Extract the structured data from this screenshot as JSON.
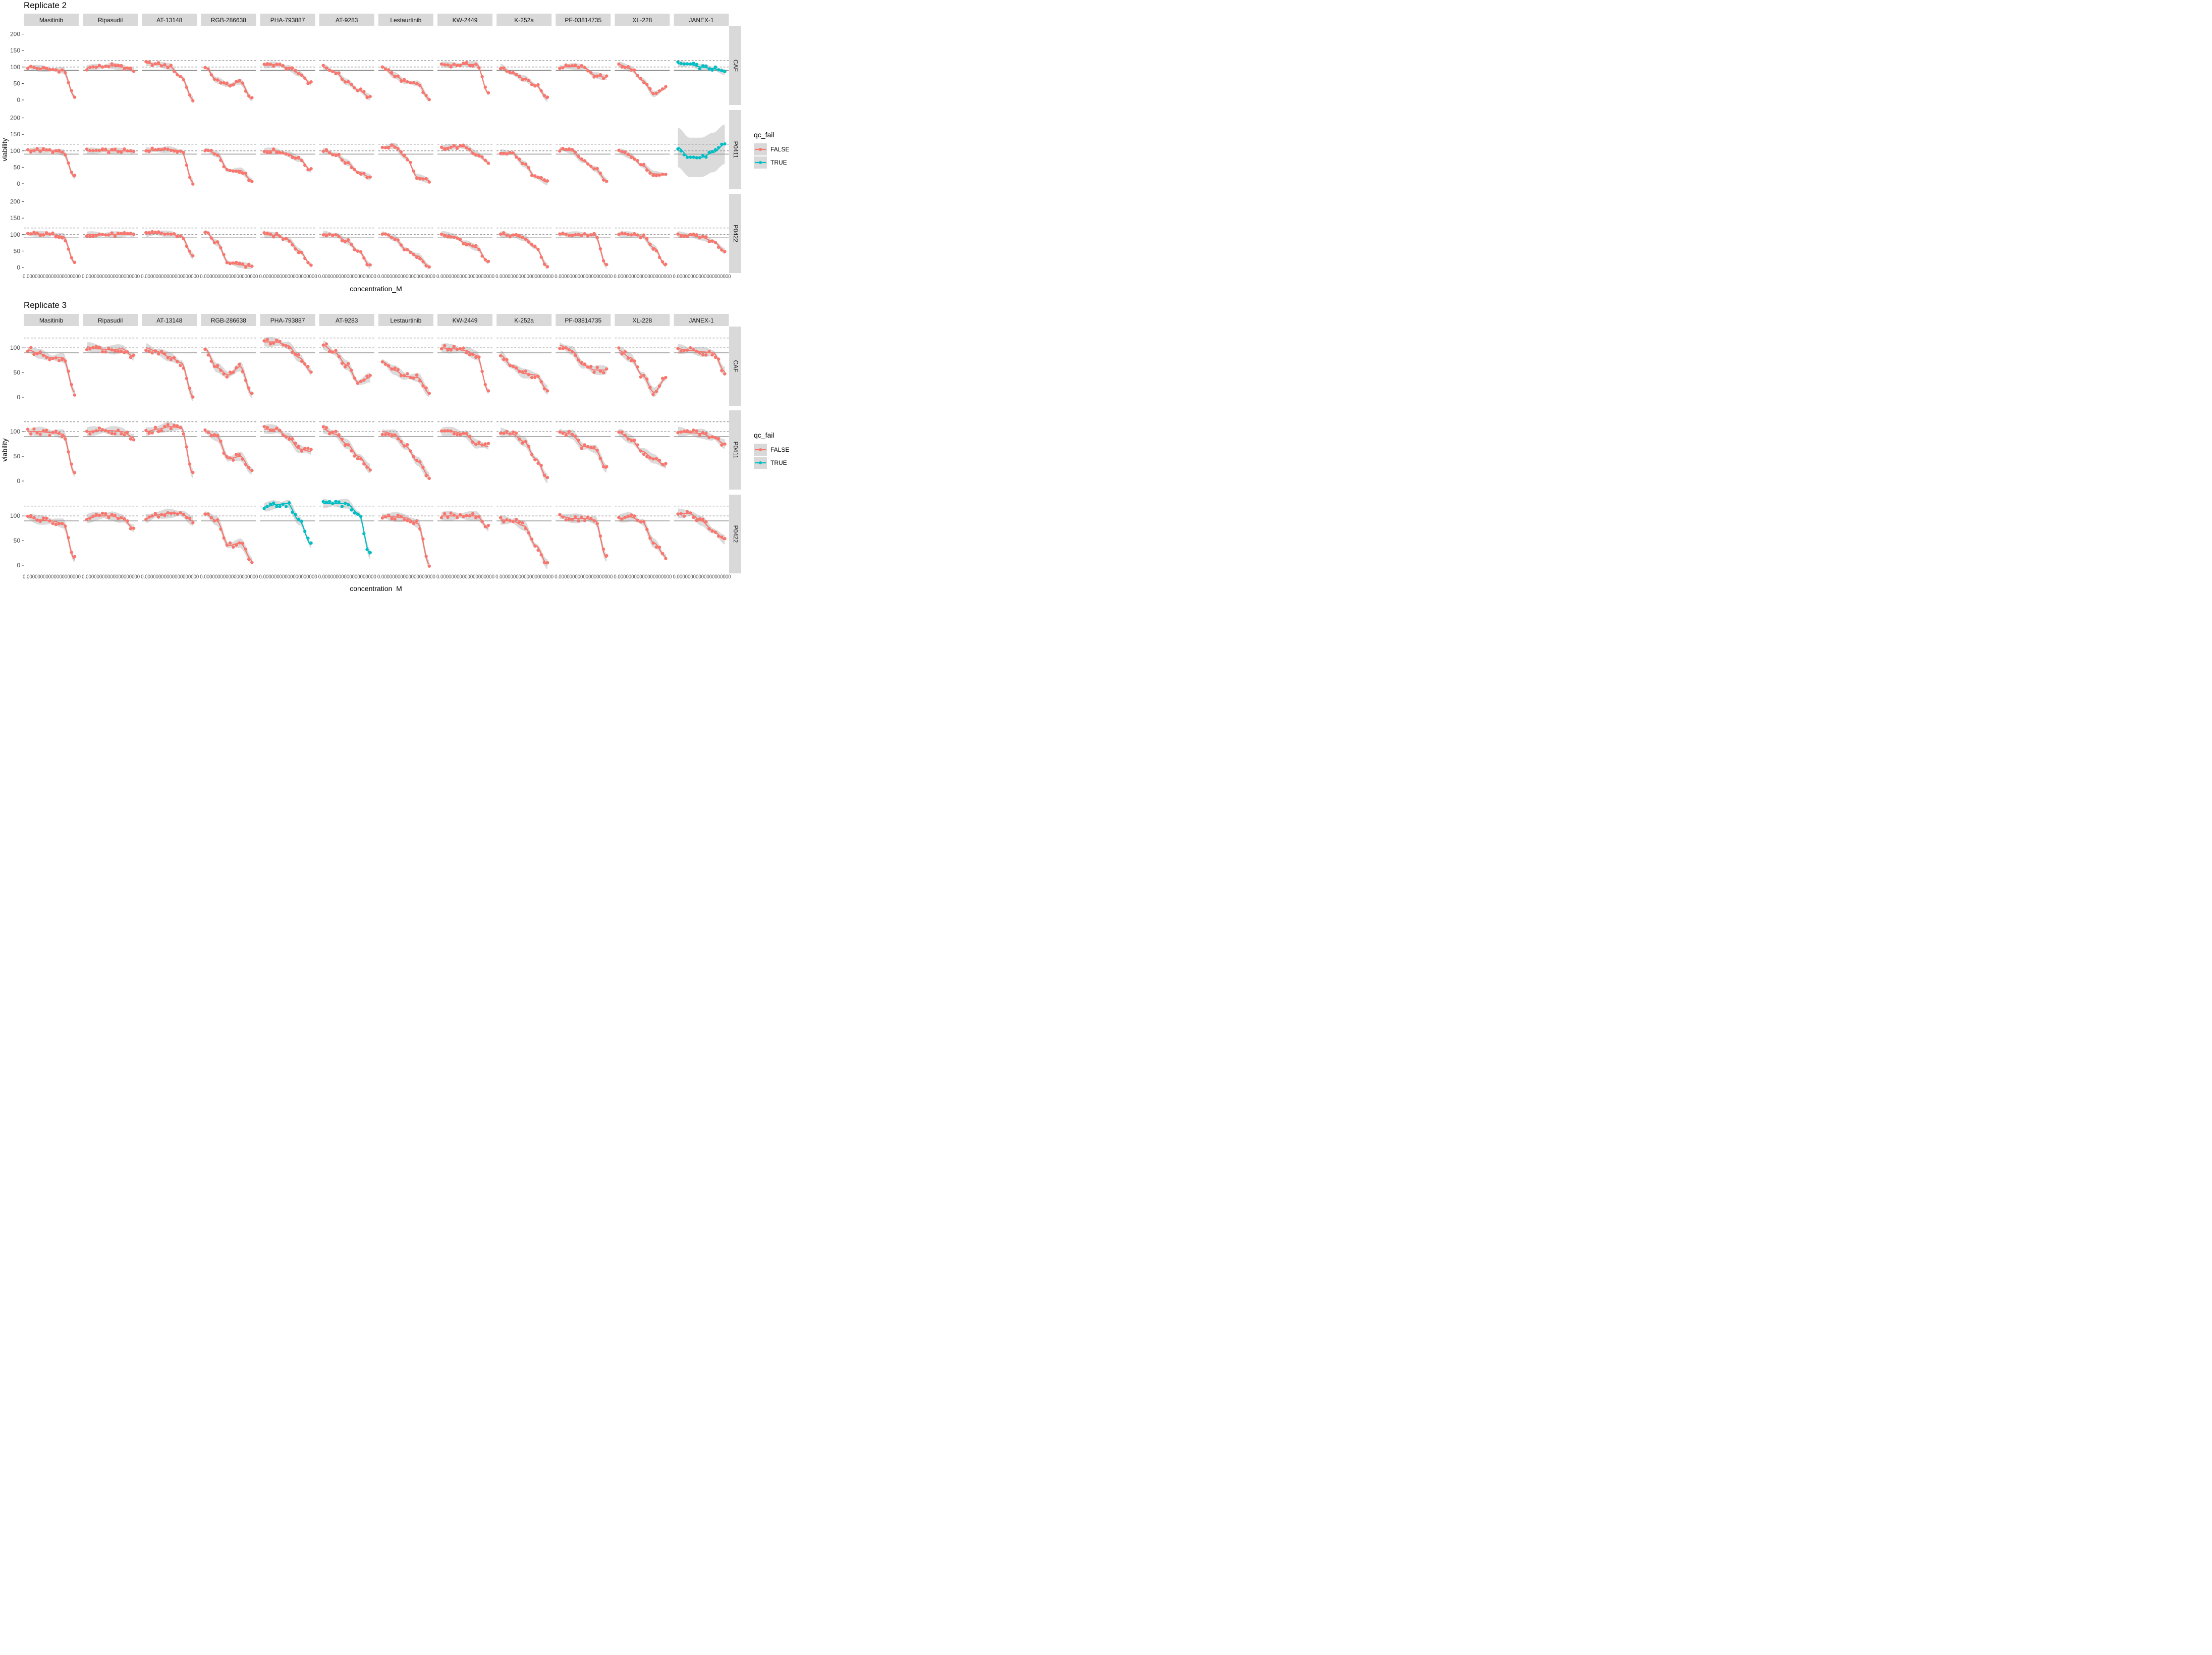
{
  "chart_data": [
    {
      "type": "line",
      "title": "Replicate 2",
      "xlabel": "concentration_M",
      "ylabel": "viability",
      "yticks": [
        0,
        50,
        100,
        150,
        200
      ],
      "xtick_text": "0.00000000000000000000",
      "legend": {
        "title": "qc_fail",
        "position": "right",
        "entries": [
          "FALSE",
          "TRUE"
        ]
      },
      "colors": {
        "FALSE": "#F8766D",
        "TRUE": "#00BFC4"
      },
      "reference_lines": {
        "solid": 90,
        "dashed": [
          100,
          120
        ]
      },
      "drugs": [
        "Masitinib",
        "Ripasudil",
        "AT-13148",
        "RGB-286638",
        "PHA-793887",
        "AT-9283",
        "Lestaurtinib",
        "KW-2449",
        "K-252a",
        "PF-03814735",
        "XL-228",
        "JANEX-1"
      ],
      "cells": [
        "CAF",
        "P0411",
        "P0422"
      ],
      "profiles": [
        [
          [
            100,
            96,
            92,
            90,
            10
          ],
          [
            97,
            101,
            104,
            100,
            90
          ],
          [
            112,
            108,
            102,
            70,
            2
          ],
          [
            100,
            60,
            45,
            55,
            3
          ],
          [
            105,
            108,
            98,
            80,
            50
          ],
          [
            100,
            85,
            55,
            30,
            8
          ],
          [
            100,
            75,
            55,
            50,
            3
          ],
          [
            108,
            106,
            108,
            108,
            20
          ],
          [
            100,
            80,
            65,
            45,
            4
          ],
          [
            100,
            102,
            100,
            75,
            68
          ],
          [
            108,
            95,
            60,
            18,
            35
          ],
          [
            110,
            108,
            100,
            95,
            85
          ]
        ],
        [
          [
            102,
            102,
            100,
            95,
            20
          ],
          [
            100,
            100,
            100,
            100,
            97
          ],
          [
            102,
            102,
            104,
            100,
            5
          ],
          [
            105,
            90,
            40,
            40,
            10
          ],
          [
            100,
            100,
            90,
            75,
            40
          ],
          [
            100,
            90,
            65,
            35,
            20
          ],
          [
            110,
            115,
            80,
            20,
            10
          ],
          [
            108,
            112,
            112,
            90,
            65
          ],
          [
            95,
            92,
            60,
            20,
            5
          ],
          [
            105,
            100,
            70,
            45,
            10
          ],
          [
            100,
            85,
            55,
            30,
            28
          ],
          [
            110,
            80,
            80,
            95,
            120
          ]
        ],
        [
          [
            102,
            102,
            100,
            95,
            15
          ],
          [
            100,
            100,
            100,
            100,
            100
          ],
          [
            102,
            104,
            102,
            95,
            35
          ],
          [
            110,
            75,
            15,
            8,
            3
          ],
          [
            100,
            98,
            85,
            50,
            8
          ],
          [
            102,
            100,
            80,
            50,
            5
          ],
          [
            105,
            90,
            55,
            35,
            2
          ],
          [
            102,
            95,
            75,
            60,
            15
          ],
          [
            100,
            98,
            90,
            60,
            3
          ],
          [
            100,
            100,
            100,
            98,
            5
          ],
          [
            100,
            100,
            95,
            60,
            5
          ],
          [
            100,
            98,
            92,
            80,
            50
          ]
        ]
      ],
      "qc_true": [
        [
          11
        ],
        [
          11
        ],
        []
      ]
    },
    {
      "type": "line",
      "title": "Replicate 3",
      "xlabel": "concentration_M",
      "ylabel": "viability",
      "yticks": [
        0,
        50,
        100
      ],
      "xtick_text": "0.00000000000000000000",
      "legend": {
        "title": "qc_fail",
        "position": "right",
        "entries": [
          "FALSE",
          "TRUE"
        ]
      },
      "colors": {
        "FALSE": "#F8766D",
        "TRUE": "#00BFC4"
      },
      "reference_lines": {
        "solid": 90,
        "dashed": [
          100,
          120
        ]
      },
      "drugs": [
        "Masitinib",
        "Ripasudil",
        "AT-13148",
        "RGB-286638",
        "PHA-793887",
        "AT-9283",
        "Lestaurtinib",
        "KW-2449",
        "K-252a",
        "PF-03814735",
        "XL-228",
        "JANEX-1"
      ],
      "cells": [
        "CAF",
        "P0411",
        "P0422"
      ],
      "profiles": [
        [
          [
            96,
            88,
            80,
            80,
            10
          ],
          [
            102,
            98,
            96,
            98,
            82
          ],
          [
            100,
            92,
            82,
            70,
            2
          ],
          [
            98,
            60,
            45,
            62,
            5
          ],
          [
            112,
            112,
            105,
            80,
            52
          ],
          [
            105,
            90,
            65,
            30,
            40
          ],
          [
            72,
            55,
            42,
            40,
            8
          ],
          [
            100,
            98,
            95,
            85,
            12
          ],
          [
            85,
            62,
            48,
            45,
            15
          ],
          [
            105,
            95,
            65,
            55,
            55
          ],
          [
            95,
            80,
            45,
            10,
            38
          ],
          [
            98,
            95,
            92,
            90,
            52
          ]
        ],
        [
          [
            100,
            100,
            98,
            95,
            15
          ],
          [
            100,
            102,
            102,
            100,
            88
          ],
          [
            100,
            105,
            110,
            108,
            15
          ],
          [
            100,
            90,
            45,
            50,
            20
          ],
          [
            105,
            105,
            90,
            65,
            60
          ],
          [
            105,
            95,
            75,
            50,
            25
          ],
          [
            100,
            95,
            70,
            40,
            10
          ],
          [
            100,
            100,
            95,
            75,
            70
          ],
          [
            98,
            95,
            80,
            45,
            5
          ],
          [
            100,
            95,
            70,
            65,
            25
          ],
          [
            98,
            85,
            60,
            45,
            30
          ],
          [
            100,
            98,
            96,
            88,
            75
          ]
        ],
        [
          [
            98,
            92,
            90,
            85,
            12
          ],
          [
            95,
            100,
            100,
            95,
            75
          ],
          [
            95,
            102,
            105,
            105,
            90
          ],
          [
            105,
            90,
            40,
            45,
            10
          ],
          [
            118,
            123,
            125,
            90,
            42
          ],
          [
            125,
            125,
            125,
            105,
            22
          ],
          [
            100,
            98,
            96,
            85,
            2
          ],
          [
            100,
            100,
            100,
            100,
            75
          ],
          [
            92,
            90,
            80,
            40,
            2
          ],
          [
            100,
            95,
            95,
            92,
            15
          ],
          [
            95,
            98,
            88,
            45,
            18
          ],
          [
            105,
            105,
            90,
            70,
            52
          ]
        ]
      ],
      "qc_true": [
        [],
        [],
        [
          4,
          5
        ]
      ]
    }
  ]
}
